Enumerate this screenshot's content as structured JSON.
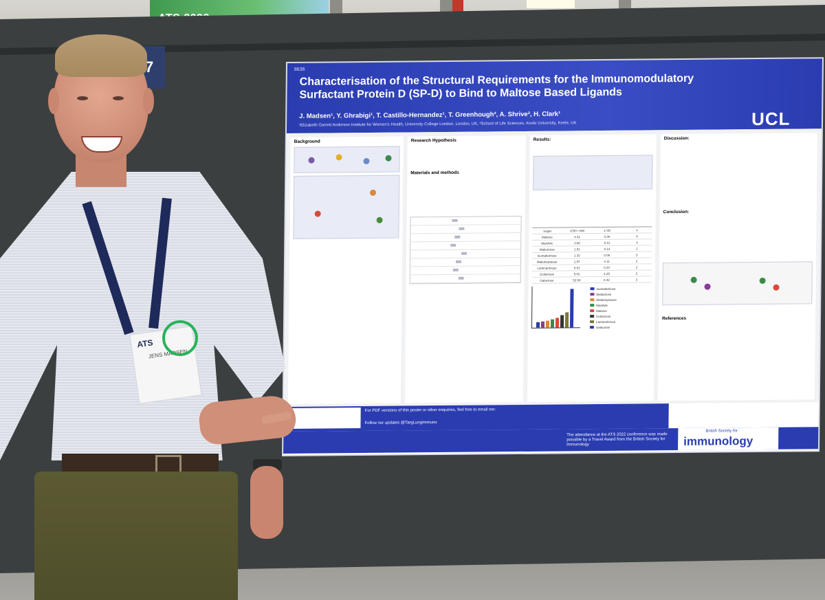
{
  "scene": {
    "banner_text": "ATS 2022",
    "board_number": "37"
  },
  "poster": {
    "id": "8636",
    "title": "Characterisation of the Structural Requirements for the Immunomodulatory Surfactant Protein D (SP-D) to Bind to Maltose Based Ligands",
    "authors": "J. Madsen¹, Y. Ghrabigi¹, T. Castillo-Hernandez¹, T. Greenhough², A. Shrive², H. Clark¹",
    "affiliations": "¹Elizabeth Garrett Anderson Institute for Women's Health, University College London, London, UK, ²School of Life Sciences, Keele University, Keele, UK",
    "logo": "UCL",
    "sections": {
      "background": "Background",
      "hypothesis": "Research Hypothesis",
      "methods": "Materials and methods",
      "results": "Results:",
      "discussion": "Discussion:",
      "conclusion": "Conclusion:",
      "references": "References"
    },
    "results_table": {
      "headers": [
        "Sugar",
        "IC50 / mM",
        "± SD",
        "n"
      ],
      "rows": [
        [
          "Maltose",
          "4.42",
          "0.30",
          "6"
        ],
        [
          "ManNAc",
          "3.60",
          "0.12",
          "4"
        ],
        [
          "Maltotriose",
          "1.51",
          "0.13",
          "2"
        ],
        [
          "Isomaltotriose",
          "1.32",
          "0.06",
          "3"
        ],
        [
          "Maltoheptaose",
          "1.97",
          "0.11",
          "2"
        ],
        [
          "Laminaritriose",
          "8.61",
          "0.20",
          "2"
        ],
        [
          "Cellotriose",
          "5.02",
          "4.25",
          "2"
        ],
        [
          "Galactose",
          "52.50",
          "8.42",
          "3"
        ]
      ]
    },
    "chart_legend": [
      "Isomaltotriose",
      "Maltotriose",
      "Maltoheptaose",
      "ManNAc",
      "Maltose",
      "Cellotriose",
      "Laminaritriose",
      "Galactose"
    ],
    "footer": {
      "pdf_line": "For PDF versions of this poster or other enquiries, feel free to email me:",
      "twitter_line": "Follow our updates @TargLungImmuno",
      "travel_award": "The attendance at the ATS 2022 conference was made possible by a Travel Award from the British Society for Immunology",
      "bsi_small": "British Society for",
      "bsi_big": "immunology"
    }
  },
  "badge": {
    "org": "ATS",
    "name": "JENS MADSEN"
  },
  "colors": {
    "poster_blue": "#2a3cb0",
    "board": "#3b3f40",
    "lanyard": "#1e2a5a",
    "badge_clip": "#27b35a"
  }
}
